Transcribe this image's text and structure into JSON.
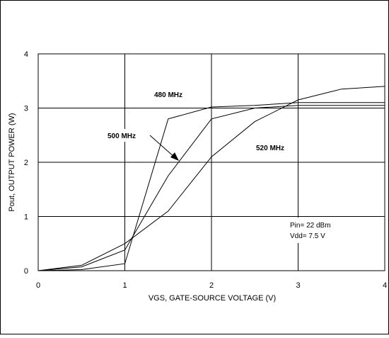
{
  "chart_data": {
    "type": "line",
    "xlabel": "VGS, GATE-SOURCE VOLTAGE (V)",
    "ylabel": "Pout, OUTPUT POWER (W)",
    "xlim": [
      0,
      4
    ],
    "ylim": [
      0,
      4
    ],
    "x_ticks": [
      "0",
      "1",
      "2",
      "3",
      "4"
    ],
    "y_ticks": [
      "0",
      "1",
      "2",
      "3",
      "4"
    ],
    "grid": true,
    "series": [
      {
        "name": "480 MHz",
        "x": [
          0,
          0.5,
          1.0,
          1.5,
          2.0,
          2.5,
          3.0,
          3.5,
          4.0
        ],
        "y": [
          0,
          0.02,
          0.13,
          2.8,
          3.02,
          3.05,
          3.1,
          3.1,
          3.1
        ]
      },
      {
        "name": "500 MHz",
        "x": [
          0,
          0.5,
          1.0,
          1.5,
          2.0,
          2.5,
          3.0,
          3.5,
          4.0
        ],
        "y": [
          0,
          0.07,
          0.38,
          1.75,
          2.8,
          3.0,
          3.05,
          3.05,
          3.05
        ]
      },
      {
        "name": "520 MHz",
        "x": [
          0,
          0.5,
          1.0,
          1.5,
          2.0,
          2.5,
          3.0,
          3.5,
          4.0
        ],
        "y": [
          0,
          0.1,
          0.5,
          1.1,
          2.1,
          2.75,
          3.15,
          3.35,
          3.4
        ]
      }
    ],
    "annotations": [
      "Pin= 22 dBm",
      "Vdd= 7.5 V"
    ]
  }
}
